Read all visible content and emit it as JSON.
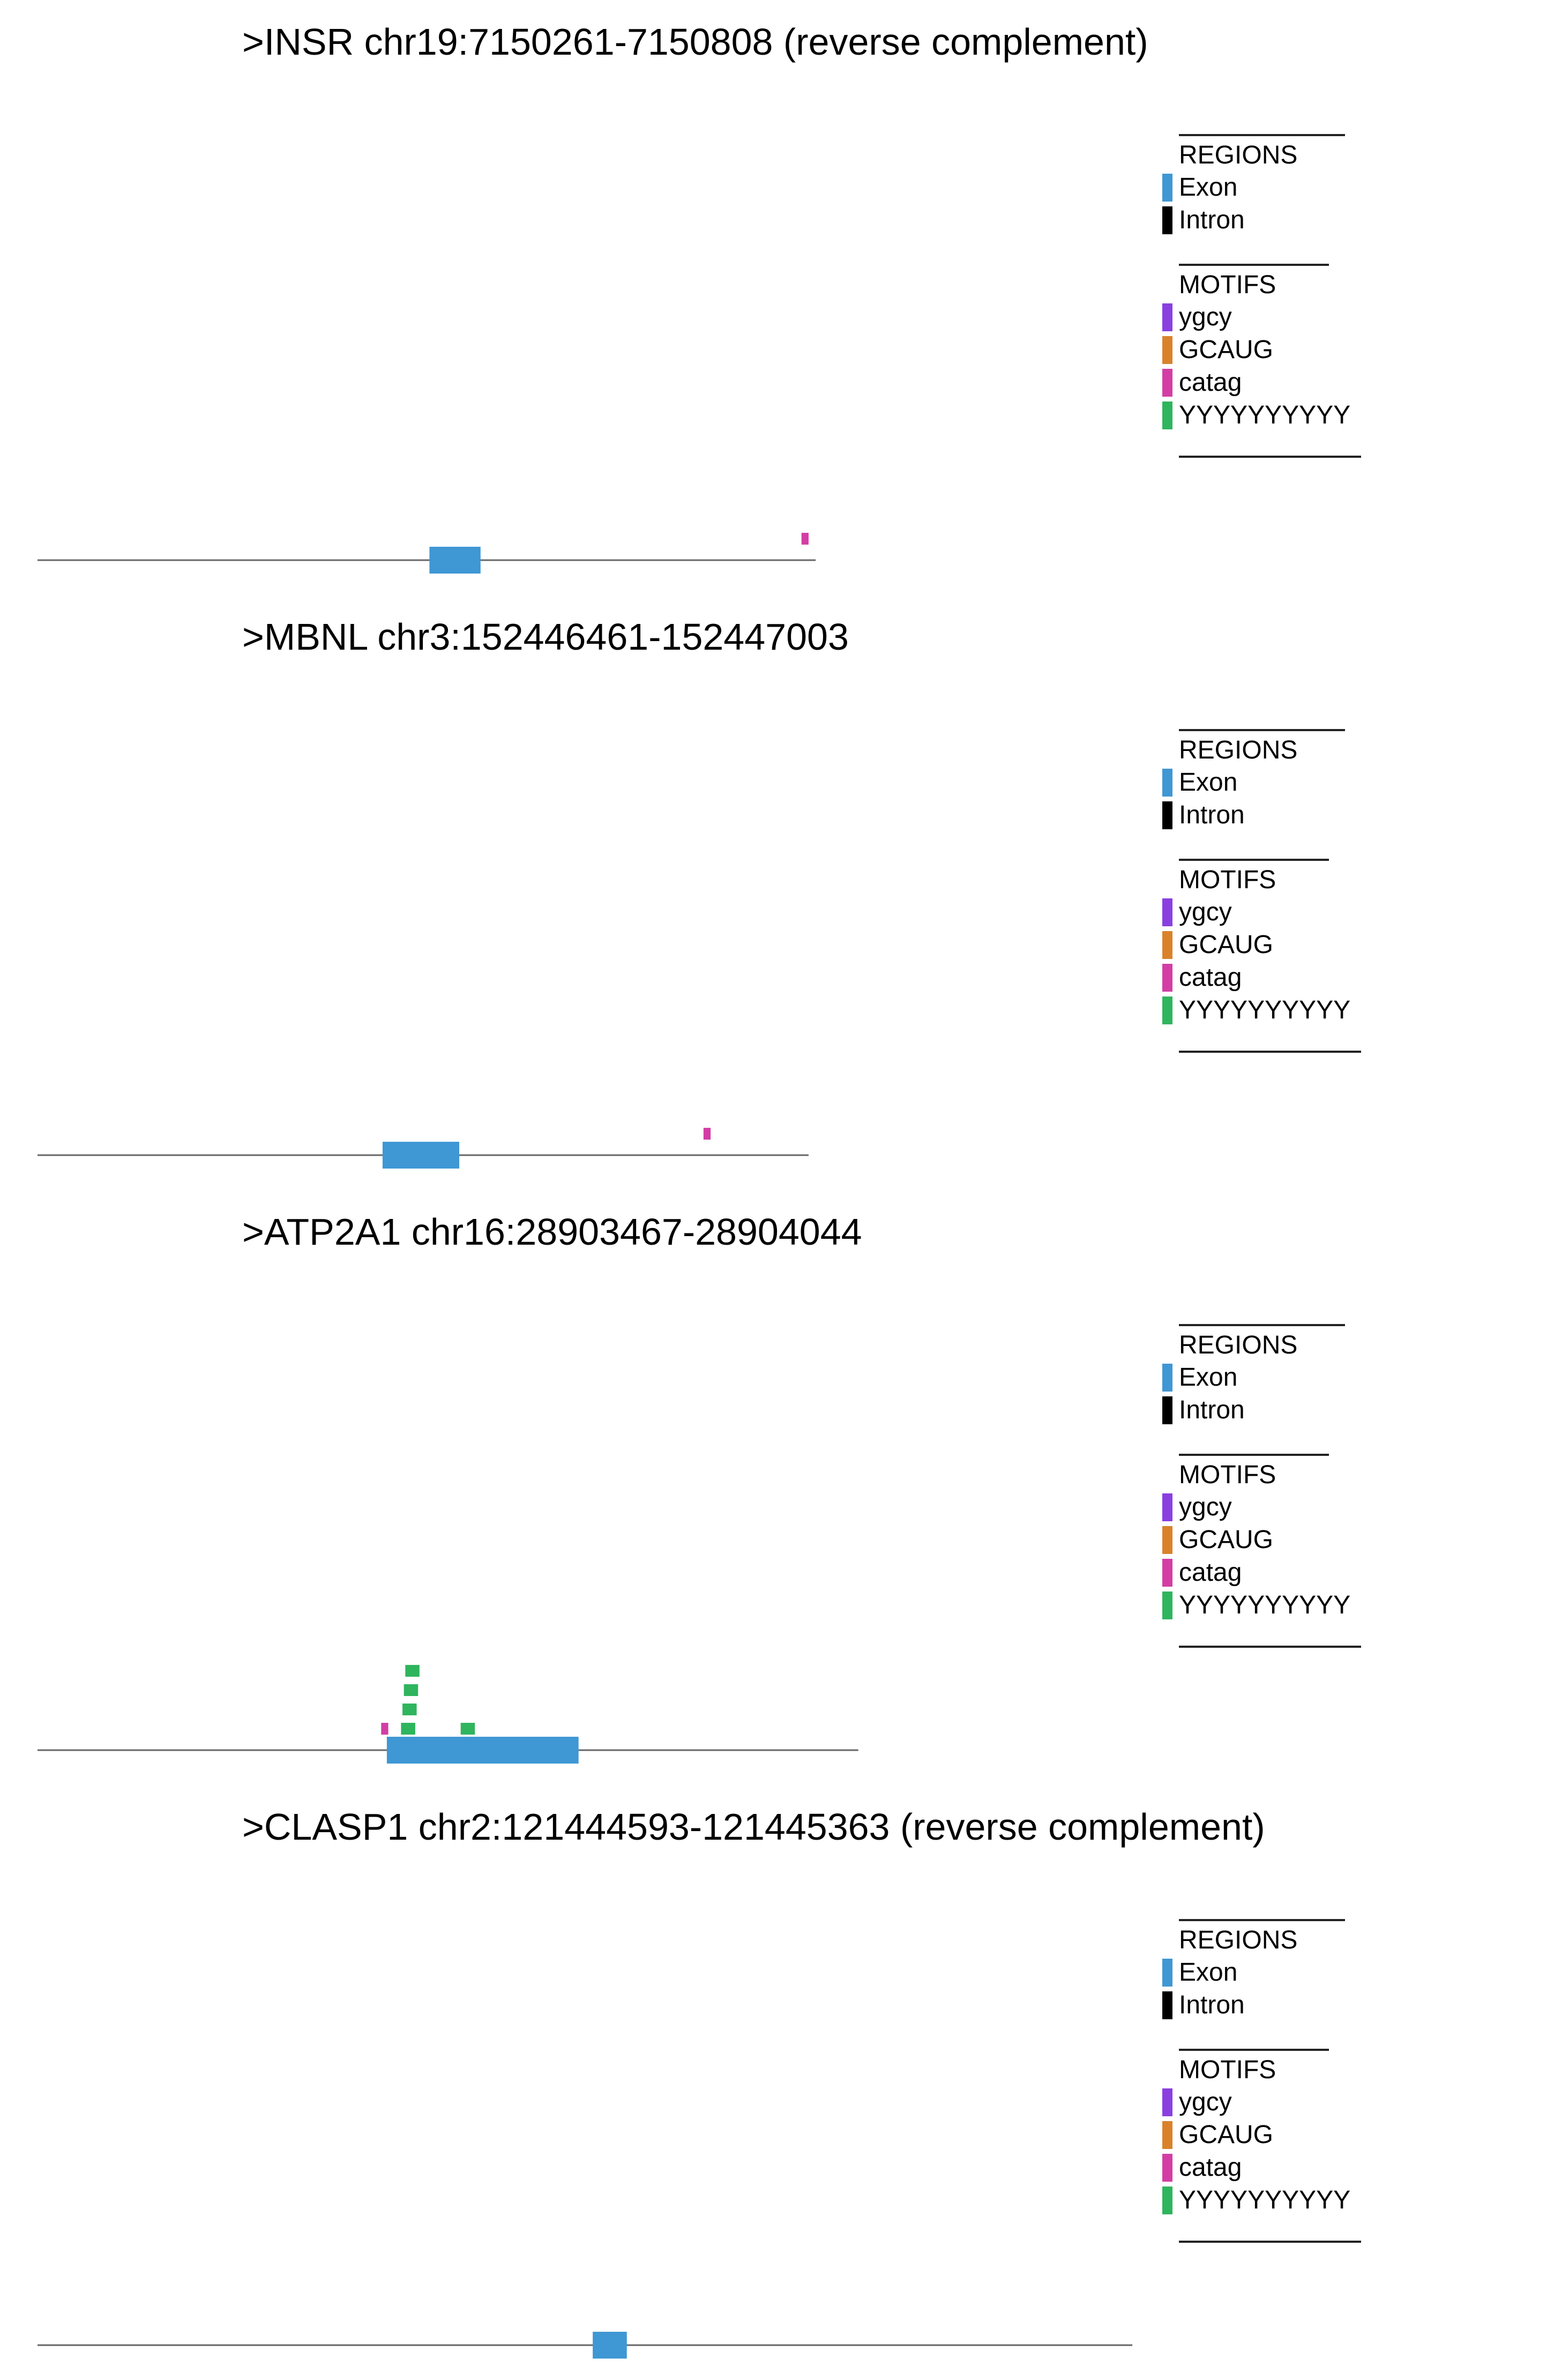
{
  "colors": {
    "exon": "#3f97d4",
    "intron": "#000000",
    "ygcy": "#8a3fe0",
    "GCAUG": "#d9822b",
    "catag": "#d33ea5",
    "YYYYYYYYYY": "#2fb55d",
    "backbone": "#666666"
  },
  "legend": {
    "regions_heading": "REGIONS",
    "regions": [
      {
        "label": "Exon",
        "color_key": "exon"
      },
      {
        "label": "Intron",
        "color_key": "intron"
      }
    ],
    "motifs_heading": "MOTIFS",
    "motifs": [
      {
        "label": "ygcy",
        "color_key": "ygcy"
      },
      {
        "label": "GCAUG",
        "color_key": "GCAUG"
      },
      {
        "label": "catag",
        "color_key": "catag"
      },
      {
        "label": "YYYYYYYYYY",
        "color_key": "YYYYYYYYYY"
      }
    ]
  },
  "panels": [
    {
      "title": ">INSR chr19:7150261-7150808 (reverse complement)",
      "sequence_length": 548,
      "exons": [
        {
          "start": 276,
          "end": 312
        }
      ],
      "motifs": [
        {
          "motif": "catag",
          "start": 538,
          "end": 543,
          "level": 1
        }
      ]
    },
    {
      "title": ">MBNL chr3:152446461-152447003",
      "sequence_length": 543,
      "exons": [
        {
          "start": 243,
          "end": 297
        }
      ],
      "motifs": [
        {
          "motif": "catag",
          "start": 469,
          "end": 474,
          "level": 1
        }
      ]
    },
    {
      "title": ">ATP2A1 chr16:28903467-28904044",
      "sequence_length": 578,
      "exons": [
        {
          "start": 246,
          "end": 381
        }
      ],
      "motifs": [
        {
          "motif": "catag",
          "start": 242,
          "end": 247,
          "level": 1
        },
        {
          "motif": "YYYYYYYYYY",
          "start": 256,
          "end": 266,
          "level": 1
        },
        {
          "motif": "YYYYYYYYYY",
          "start": 257,
          "end": 267,
          "level": 2
        },
        {
          "motif": "YYYYYYYYYY",
          "start": 258,
          "end": 268,
          "level": 3
        },
        {
          "motif": "YYYYYYYYYY",
          "start": 259,
          "end": 269,
          "level": 4
        },
        {
          "motif": "YYYYYYYYYY",
          "start": 298,
          "end": 308,
          "level": 1
        }
      ]
    },
    {
      "title": ">CLASP1 chr2:121444593-121445363 (reverse complement)",
      "sequence_length": 771,
      "exons": [
        {
          "start": 391,
          "end": 415
        }
      ],
      "motifs": []
    }
  ]
}
